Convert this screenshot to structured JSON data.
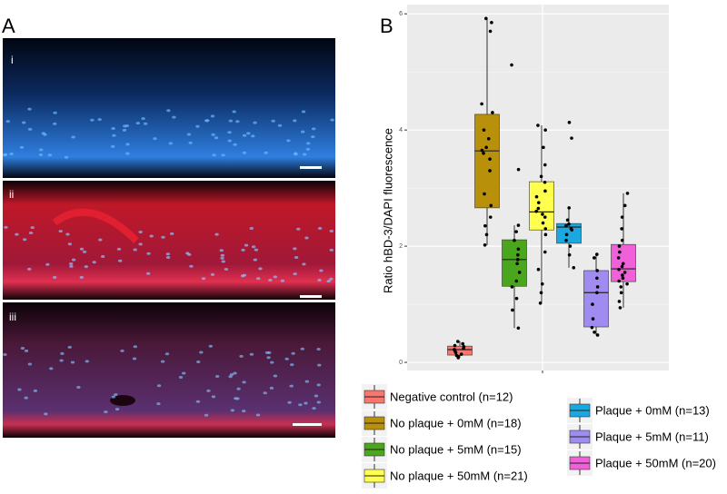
{
  "panel_a": {
    "label": "A",
    "subpanels": [
      "i",
      "ii",
      "iii"
    ]
  },
  "chart_data": {
    "type": "box",
    "panel_label": "B",
    "y_label": "Ratio hBD-3/DAPI fluorescence",
    "ylim": [
      -0.14,
      6.16
    ],
    "yticks": [
      0,
      2,
      4,
      6
    ],
    "grid": true,
    "series": [
      {
        "name": "Negative control (n=12)",
        "color": "#f8766d",
        "stats": {
          "min": 0.08,
          "q1": 0.125,
          "median": 0.22,
          "q3": 0.28,
          "max": 0.36
        },
        "points": [
          0.08,
          0.1,
          0.12,
          0.14,
          0.17,
          0.2,
          0.22,
          0.24,
          0.27,
          0.29,
          0.32,
          0.36
        ]
      },
      {
        "name": "No plaque + 0mM (n=18)",
        "color": "#b8900a",
        "stats": {
          "min": 2.02,
          "q1": 2.66,
          "median": 3.64,
          "q3": 4.27,
          "max": 5.92
        },
        "points": [
          5.92,
          5.85,
          5.7,
          4.45,
          4.3,
          4.0,
          3.85,
          3.7,
          3.65,
          3.6,
          3.5,
          3.3,
          2.9,
          2.7,
          2.5,
          2.35,
          2.2,
          2.02
        ]
      },
      {
        "name": "No plaque + 5mM (n=15)",
        "color": "#4aa61c",
        "stats": {
          "min": 0.59,
          "q1": 1.31,
          "median": 1.77,
          "q3": 2.11,
          "max": 2.36
        },
        "points": [
          5.12,
          3.32,
          2.36,
          2.25,
          2.1,
          1.95,
          1.85,
          1.77,
          1.7,
          1.55,
          1.4,
          1.3,
          1.1,
          0.9,
          0.59
        ]
      },
      {
        "name": "No plaque + 50mM (n=21)",
        "color": "#ffff4d",
        "stats": {
          "min": 1.02,
          "q1": 2.28,
          "median": 2.59,
          "q3": 3.11,
          "max": 4.08
        },
        "points": [
          4.08,
          4.0,
          3.7,
          3.4,
          3.2,
          3.1,
          2.95,
          2.85,
          2.75,
          2.65,
          2.6,
          2.55,
          2.5,
          2.4,
          2.3,
          2.2,
          1.9,
          1.6,
          1.35,
          1.2,
          1.02
        ]
      },
      {
        "name": "Plaque + 0mM (n=13)",
        "color": "#1aa8e0",
        "stats": {
          "min": 1.63,
          "q1": 2.05,
          "median": 2.33,
          "q3": 2.39,
          "max": 2.66
        },
        "points": [
          4.13,
          3.86,
          2.66,
          2.45,
          2.38,
          2.35,
          2.3,
          2.28,
          2.2,
          2.1,
          2.0,
          1.85,
          1.63
        ]
      },
      {
        "name": "Plaque + 5mM (n=11)",
        "color": "#a08cf0",
        "stats": {
          "min": 0.47,
          "q1": 0.61,
          "median": 1.2,
          "q3": 1.58,
          "max": 1.86
        },
        "points": [
          1.86,
          1.8,
          1.58,
          1.45,
          1.3,
          1.2,
          1.0,
          0.75,
          0.6,
          0.52,
          0.47
        ]
      },
      {
        "name": "Plaque + 50mM (n=20)",
        "color": "#f060d8",
        "stats": {
          "min": 0.94,
          "q1": 1.39,
          "median": 1.61,
          "q3": 2.03,
          "max": 2.91
        },
        "points": [
          2.91,
          2.7,
          2.5,
          2.3,
          2.1,
          2.0,
          1.9,
          1.8,
          1.7,
          1.65,
          1.6,
          1.55,
          1.5,
          1.45,
          1.4,
          1.35,
          1.3,
          1.2,
          1.05,
          0.94
        ]
      }
    ]
  }
}
